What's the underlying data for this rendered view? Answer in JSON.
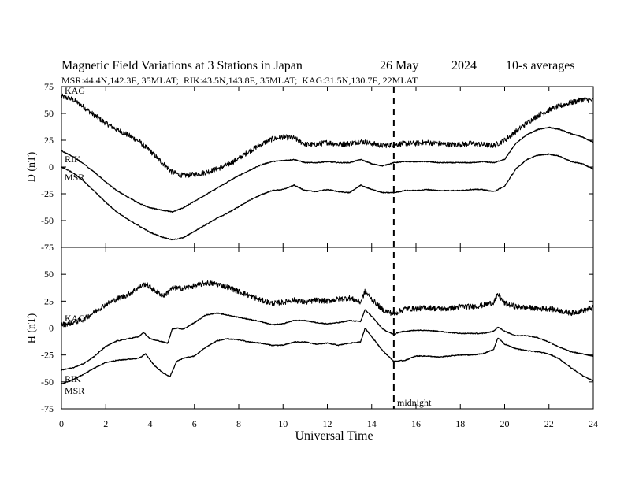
{
  "chart_data": {
    "type": "line",
    "header": {
      "title": "Magnetic Field Variations at 3 Stations in Japan",
      "date": "26 May",
      "year": "2024",
      "averaging": "10-s averages",
      "stations": "MSR:44.4N,142.3E, 35MLAT;  RIK:43.5N,143.8E, 35MLAT;  KAG:31.5N,130.7E, 22MLAT"
    },
    "xlabel": "Universal Time",
    "xlim": [
      0,
      24
    ],
    "xticks": [
      0,
      2,
      4,
      6,
      8,
      10,
      12,
      14,
      16,
      18,
      20,
      22,
      24
    ],
    "xtick_labels": [
      "0",
      "2",
      "4",
      "6",
      "8",
      "10",
      "12",
      "14",
      "16",
      "18",
      "20",
      "22",
      "24"
    ],
    "midnight": {
      "x": 15,
      "label": "midnight"
    },
    "panels": [
      {
        "ylabel": "D (nT)",
        "ylim": [
          -75,
          75
        ],
        "yticks": [
          75,
          50,
          25,
          0,
          -25,
          -50,
          -75
        ],
        "ytick_labels": [
          "75",
          "50",
          "25",
          "0",
          "-25",
          "-50",
          "-75"
        ],
        "series": [
          {
            "name": "KAG",
            "noise": 2.5,
            "x": [
              0,
              0.5,
              1,
              1.5,
              2,
              2.5,
              3,
              3.5,
              4,
              4.5,
              5,
              5.5,
              6,
              6.5,
              7,
              7.5,
              8,
              8.5,
              9,
              9.5,
              10,
              10.5,
              11,
              11.5,
              12,
              12.5,
              13,
              13.5,
              14,
              14.5,
              15,
              15.5,
              16,
              16.5,
              17,
              17.5,
              18,
              18.5,
              19,
              19.5,
              20,
              20.5,
              21,
              21.5,
              22,
              22.5,
              23,
              23.5,
              24
            ],
            "y": [
              66,
              63,
              56,
              48,
              41,
              35,
              30,
              24,
              15,
              5,
              -5,
              -8,
              -7,
              -5,
              -2,
              2,
              8,
              15,
              21,
              26,
              28,
              27,
              21,
              21,
              23,
              21,
              22,
              24,
              22,
              20,
              21,
              22,
              22,
              23,
              22,
              21,
              21,
              22,
              21,
              20,
              25,
              33,
              41,
              48,
              53,
              57,
              60,
              63,
              62
            ]
          },
          {
            "name": "RIK",
            "noise": 0.4,
            "x": [
              0,
              0.5,
              1,
              1.5,
              2,
              2.5,
              3,
              3.5,
              4,
              4.5,
              5,
              5.5,
              6,
              6.5,
              7,
              7.5,
              8,
              8.5,
              9,
              9.5,
              10,
              10.5,
              11,
              11.5,
              12,
              12.5,
              13,
              13.5,
              14,
              14.5,
              15,
              15.5,
              16,
              16.5,
              17,
              17.5,
              18,
              18.5,
              19,
              19.5,
              20,
              20.5,
              21,
              21.5,
              22,
              22.5,
              23,
              23.5,
              24
            ],
            "y": [
              15,
              10,
              3,
              -5,
              -14,
              -22,
              -28,
              -34,
              -38,
              -40,
              -42,
              -38,
              -32,
              -26,
              -20,
              -14,
              -8,
              -3,
              2,
              5,
              6,
              7,
              4,
              4,
              5,
              4,
              4,
              7,
              3,
              1,
              4,
              5,
              5,
              5,
              4,
              4,
              4,
              4,
              5,
              4,
              7,
              22,
              30,
              35,
              37,
              35,
              31,
              28,
              23
            ]
          },
          {
            "name": "MSR",
            "noise": 0.4,
            "x": [
              0,
              0.5,
              1,
              1.5,
              2,
              2.5,
              3,
              3.5,
              4,
              4.5,
              5,
              5.5,
              6,
              6.5,
              7,
              7.5,
              8,
              8.5,
              9,
              9.5,
              10,
              10.5,
              11,
              11.5,
              12,
              12.5,
              13,
              13.5,
              14,
              14.5,
              15,
              15.5,
              16,
              16.5,
              17,
              17.5,
              18,
              18.5,
              19,
              19.5,
              20,
              20.5,
              21,
              21.5,
              22,
              22.5,
              23,
              23.5,
              24
            ],
            "y": [
              0,
              -5,
              -13,
              -23,
              -33,
              -42,
              -49,
              -55,
              -61,
              -65,
              -68,
              -66,
              -60,
              -54,
              -48,
              -43,
              -37,
              -31,
              -26,
              -22,
              -21,
              -17,
              -22,
              -23,
              -21,
              -23,
              -24,
              -17,
              -21,
              -24,
              -24,
              -22,
              -22,
              -21,
              -22,
              -22,
              -22,
              -21,
              -21,
              -23,
              -18,
              -2,
              7,
              11,
              12,
              10,
              5,
              3,
              -2
            ]
          }
        ]
      },
      {
        "ylabel": "H (nT)",
        "ylim": [
          -75,
          75
        ],
        "yticks": [
          50,
          25,
          0,
          -25,
          -50,
          -75
        ],
        "ytick_labels": [
          "50",
          "25",
          "0",
          "-25",
          "-50",
          "-75"
        ],
        "series": [
          {
            "name": "KAG",
            "noise": 2.5,
            "x": [
              0,
              0.5,
              1,
              1.5,
              2,
              2.5,
              3,
              3.5,
              3.8,
              4.2,
              4.6,
              5,
              5.5,
              6,
              6.5,
              7,
              7.5,
              8,
              8.5,
              9,
              9.5,
              10,
              10.5,
              11,
              11.5,
              12,
              12.5,
              13,
              13.5,
              13.7,
              14,
              14.5,
              15,
              15.5,
              16,
              16.5,
              17,
              17.5,
              18,
              18.5,
              19,
              19.5,
              19.7,
              20,
              20.5,
              21,
              21.5,
              22,
              22.5,
              23,
              23.5,
              24
            ],
            "y": [
              3,
              5,
              8,
              15,
              22,
              27,
              31,
              38,
              41,
              35,
              30,
              37,
              37,
              39,
              42,
              41,
              38,
              34,
              30,
              26,
              23,
              24,
              26,
              24,
              26,
              25,
              27,
              28,
              24,
              34,
              27,
              17,
              13,
              18,
              18,
              19,
              18,
              18,
              20,
              20,
              21,
              24,
              31,
              23,
              20,
              19,
              18,
              18,
              16,
              14,
              16,
              19
            ]
          },
          {
            "name": "RIK",
            "noise": 0.4,
            "x": [
              0,
              0.5,
              1,
              1.5,
              2,
              2.5,
              3,
              3.5,
              3.7,
              4,
              4.4,
              4.8,
              5,
              5.2,
              5.5,
              6,
              6.5,
              7,
              7.5,
              8,
              8.5,
              9,
              9.5,
              10,
              10.5,
              11,
              11.5,
              12,
              12.5,
              13,
              13.5,
              13.7,
              14,
              14.5,
              15,
              15.2,
              15.5,
              16,
              16.5,
              17,
              17.5,
              18,
              18.5,
              19,
              19.5,
              19.7,
              20,
              20.5,
              21,
              21.5,
              22,
              22.5,
              23,
              23.5,
              24
            ],
            "y": [
              -39,
              -37,
              -33,
              -26,
              -17,
              -12,
              -10,
              -8,
              -4,
              -10,
              -12,
              -14,
              -1,
              0,
              -1,
              5,
              12,
              14,
              12,
              10,
              8,
              6,
              3,
              4,
              7,
              7,
              5,
              4,
              5,
              7,
              6,
              17,
              11,
              -1,
              -6,
              -4,
              -3,
              -2,
              -2,
              -3,
              -4,
              -5,
              -5,
              -5,
              -3,
              1,
              -3,
              -7,
              -7,
              -9,
              -13,
              -18,
              -22,
              -24,
              -26
            ]
          },
          {
            "name": "MSR",
            "noise": 0.4,
            "x": [
              0,
              0.5,
              1,
              1.5,
              2,
              2.5,
              3,
              3.5,
              3.8,
              4.2,
              4.6,
              4.9,
              5.2,
              5.5,
              6,
              6.5,
              7,
              7.5,
              8,
              8.5,
              9,
              9.5,
              10,
              10.5,
              11,
              11.5,
              12,
              12.5,
              13,
              13.5,
              13.7,
              14,
              14.5,
              15,
              15.5,
              16,
              16.5,
              17,
              17.5,
              18,
              18.5,
              19,
              19.5,
              19.7,
              20,
              20.5,
              21,
              21.5,
              22,
              22.5,
              23,
              23.5,
              24
            ],
            "y": [
              -52,
              -48,
              -43,
              -37,
              -32,
              -30,
              -29,
              -28,
              -24,
              -35,
              -42,
              -45,
              -31,
              -28,
              -26,
              -18,
              -12,
              -10,
              -11,
              -13,
              -14,
              -16,
              -16,
              -13,
              -13,
              -15,
              -14,
              -16,
              -14,
              -13,
              0,
              -8,
              -21,
              -31,
              -30,
              -26,
              -26,
              -27,
              -26,
              -25,
              -25,
              -24,
              -20,
              -9,
              -15,
              -19,
              -21,
              -22,
              -24,
              -29,
              -37,
              -44,
              -49
            ]
          }
        ]
      }
    ]
  }
}
